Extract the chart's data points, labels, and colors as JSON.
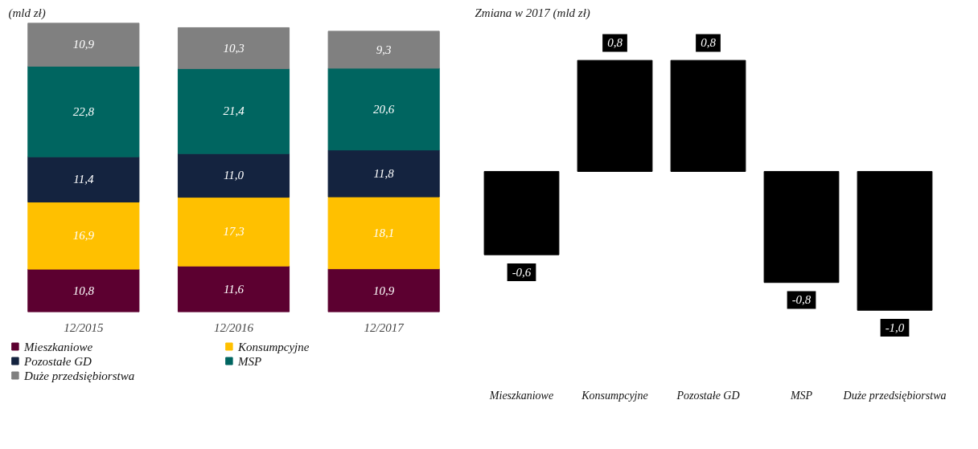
{
  "chart_data": [
    {
      "type": "bar",
      "title": "(mld zł)",
      "stacked": true,
      "legend": "bottom",
      "grid": false,
      "categories": [
        "12/2015",
        "12/2016",
        "12/2017"
      ],
      "series": [
        {
          "name": "Mieszkaniowe",
          "color": "#5c0030",
          "values": [
            10.8,
            11.6,
            10.9
          ],
          "value_labels": [
            "10,8",
            "11,6",
            "10,9"
          ]
        },
        {
          "name": "Konsumpcyjne",
          "color": "#ffc000",
          "values": [
            16.9,
            17.3,
            18.1
          ],
          "value_labels": [
            "16,9",
            "17,3",
            "18,1"
          ]
        },
        {
          "name": "Pozostałe GD",
          "color": "#14233f",
          "values": [
            11.4,
            11.0,
            11.8
          ],
          "value_labels": [
            "11,4",
            "11,0",
            "11,8"
          ]
        },
        {
          "name": "MSP",
          "color": "#006560",
          "values": [
            22.8,
            21.4,
            20.6
          ],
          "value_labels": [
            "22,8",
            "21,4",
            "20,6"
          ]
        },
        {
          "name": "Duże przedsiębiorstwa",
          "color": "#808080",
          "values": [
            10.9,
            10.3,
            9.3
          ],
          "value_labels": [
            "10,9",
            "10,3",
            "9,3"
          ]
        }
      ]
    },
    {
      "type": "bar",
      "title": "Zmiana w 2017 (mld zł)",
      "grid": false,
      "categories": [
        "Mieszkaniowe",
        "Konsumpcyjne",
        "Pozostałe GD",
        "MSP",
        "Duże przedsiębiorstwa"
      ],
      "values": [
        -0.6,
        0.8,
        0.8,
        -0.8,
        -1.0
      ],
      "color": "#000000",
      "value_labels": [
        "-0,6",
        "0,8",
        "0,8",
        "-0,8",
        "-1,0"
      ]
    }
  ]
}
